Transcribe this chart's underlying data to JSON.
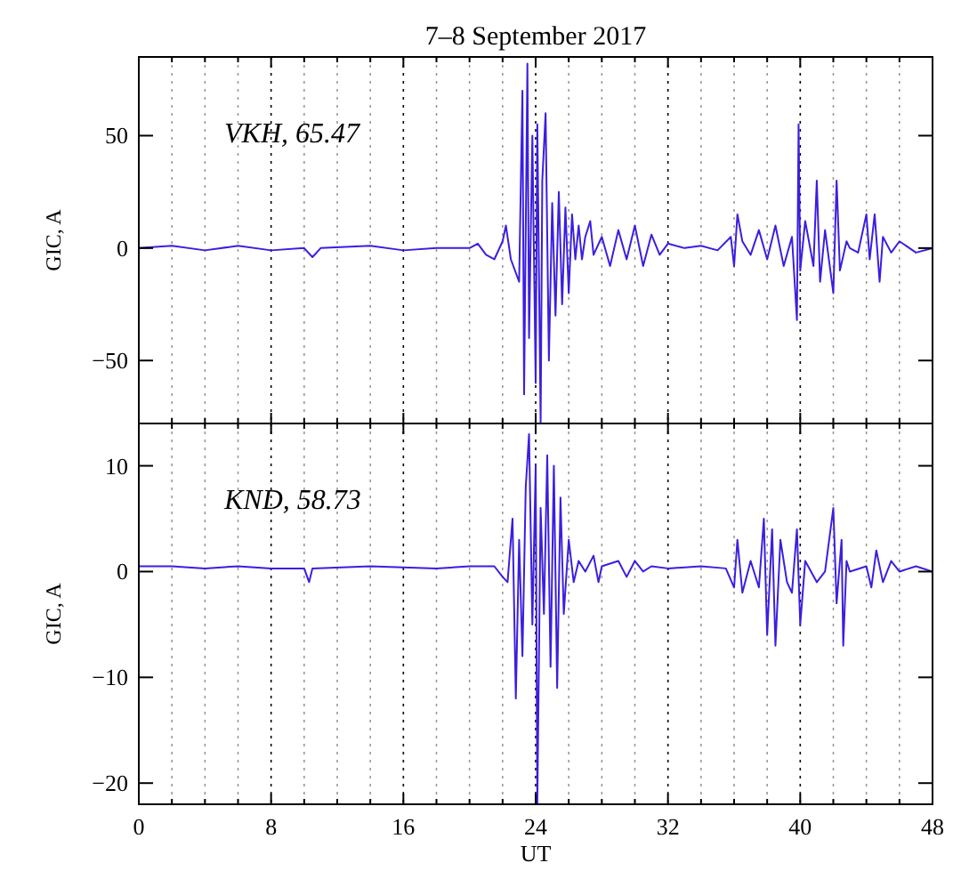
{
  "chart_data": [
    {
      "type": "line",
      "title": "7–8 September 2017",
      "ylabel": "GIC, A",
      "annotations": [
        "VKH, 65.47"
      ],
      "grid": "x",
      "tick_labels": "y",
      "xlim": [
        0,
        48
      ],
      "xticks": [
        0,
        {
          "value": 2,
          "label": null
        },
        {
          "value": 4,
          "label": null
        },
        {
          "value": 6,
          "label": null
        },
        8,
        {
          "value": 10,
          "label": null
        },
        {
          "value": 12,
          "label": null
        },
        {
          "value": 14,
          "label": null
        },
        16,
        {
          "value": 18,
          "label": null
        },
        {
          "value": 20,
          "label": null
        },
        {
          "value": 22,
          "label": null
        },
        24,
        {
          "value": 26,
          "label": null
        },
        {
          "value": 28,
          "label": null
        },
        {
          "value": 30,
          "label": null
        },
        32,
        {
          "value": 34,
          "label": null
        },
        {
          "value": 36,
          "label": null
        },
        {
          "value": 38,
          "label": null
        },
        40,
        {
          "value": 42,
          "label": null
        },
        {
          "value": 44,
          "label": null
        },
        {
          "value": 46,
          "label": null
        },
        48
      ],
      "ylim": [
        -78,
        85
      ],
      "yticks": [
        -50,
        0,
        50
      ],
      "series": [
        {
          "color": "#3a1fe0",
          "x": [
            0,
            2,
            4,
            6,
            8,
            10,
            10.5,
            11,
            14,
            16,
            18,
            20,
            20.5,
            21,
            21.5,
            22,
            22.2,
            22.5,
            23,
            23.2,
            23.3,
            23.5,
            23.6,
            23.8,
            24,
            24.1,
            24.3,
            24.4,
            24.6,
            24.8,
            25,
            25.2,
            25.4,
            25.6,
            25.8,
            26,
            26.2,
            26.4,
            26.6,
            26.8,
            27,
            27.3,
            27.5,
            28,
            28.5,
            29,
            29.5,
            30,
            30.5,
            31,
            31.5,
            32,
            33,
            34,
            35,
            35.8,
            36,
            36.2,
            36.5,
            37,
            37.5,
            38,
            38.5,
            39,
            39.5,
            39.8,
            39.9,
            40,
            40.3,
            40.8,
            41,
            41.2,
            41.5,
            42,
            42.2,
            42.4,
            42.8,
            43,
            43.5,
            44,
            44.2,
            44.5,
            44.8,
            45,
            45.5,
            46,
            47,
            48
          ],
          "values": [
            0,
            1,
            -1,
            1,
            -1,
            0,
            -4,
            0,
            1,
            -1,
            0,
            0,
            2,
            -3,
            -5,
            3,
            10,
            -5,
            -15,
            70,
            -65,
            82,
            -40,
            50,
            -60,
            55,
            -78,
            30,
            60,
            -50,
            20,
            -30,
            25,
            -25,
            18,
            -20,
            15,
            -5,
            10,
            -5,
            5,
            12,
            -3,
            5,
            -8,
            8,
            -5,
            10,
            -8,
            6,
            -3,
            2,
            0,
            1,
            -1,
            5,
            -8,
            15,
            3,
            -3,
            8,
            -5,
            10,
            -8,
            5,
            -32,
            55,
            -10,
            12,
            -8,
            30,
            -15,
            8,
            -20,
            30,
            -10,
            3,
            0,
            -2,
            15,
            -5,
            15,
            -15,
            5,
            -2,
            3,
            -2,
            0
          ]
        }
      ]
    },
    {
      "type": "line",
      "xlabel": "UT",
      "ylabel": "GIC, A",
      "annotations": [
        "KND, 58.73"
      ],
      "grid": "x",
      "xlim": [
        0,
        48
      ],
      "xticks": [
        0,
        {
          "value": 2,
          "label": null
        },
        {
          "value": 4,
          "label": null
        },
        {
          "value": 6,
          "label": null
        },
        8,
        {
          "value": 10,
          "label": null
        },
        {
          "value": 12,
          "label": null
        },
        {
          "value": 14,
          "label": null
        },
        16,
        {
          "value": 18,
          "label": null
        },
        {
          "value": 20,
          "label": null
        },
        {
          "value": 22,
          "label": null
        },
        24,
        {
          "value": 26,
          "label": null
        },
        {
          "value": 28,
          "label": null
        },
        {
          "value": 30,
          "label": null
        },
        32,
        {
          "value": 34,
          "label": null
        },
        {
          "value": 36,
          "label": null
        },
        {
          "value": 38,
          "label": null
        },
        40,
        {
          "value": 42,
          "label": null
        },
        {
          "value": 44,
          "label": null
        },
        {
          "value": 46,
          "label": null
        },
        48
      ],
      "ylim": [
        -22,
        14
      ],
      "yticks": [
        -20,
        -10,
        0,
        10
      ],
      "series": [
        {
          "color": "#3a1fe0",
          "x": [
            0,
            2,
            4,
            6,
            8,
            10,
            10.3,
            10.5,
            14,
            18,
            20,
            21.5,
            22,
            22.3,
            22.6,
            22.8,
            23,
            23.2,
            23.4,
            23.6,
            23.8,
            24,
            24.1,
            24.3,
            24.5,
            24.7,
            24.9,
            25.1,
            25.3,
            25.5,
            25.7,
            26,
            26.3,
            26.6,
            27,
            27.5,
            27.8,
            28,
            29,
            29.5,
            30,
            30.5,
            31,
            32,
            34,
            35.5,
            36,
            36.2,
            36.5,
            37,
            37.5,
            37.8,
            38,
            38.3,
            38.5,
            38.8,
            39.2,
            39.5,
            39.8,
            40,
            40.3,
            41,
            41.5,
            42,
            42.2,
            42.5,
            42.6,
            42.8,
            43,
            44,
            44.3,
            44.6,
            45,
            45.5,
            46,
            47,
            48
          ],
          "values": [
            0.5,
            0.5,
            0.3,
            0.5,
            0.3,
            0.3,
            -1,
            0.3,
            0.5,
            0.3,
            0.5,
            0.5,
            -0.5,
            -1,
            5,
            -12,
            3,
            -8,
            8,
            13,
            -5,
            10,
            -22,
            6,
            -4,
            11,
            -9,
            10,
            -11,
            7,
            -4,
            3,
            -1,
            1,
            0,
            1.5,
            -1,
            0.5,
            1,
            -0.5,
            1,
            0,
            0.5,
            0.3,
            0.5,
            0.3,
            -1.5,
            3,
            -2,
            1,
            -1.5,
            5,
            -6,
            4,
            -7,
            3,
            -1,
            -2,
            4,
            -5,
            1,
            -1,
            0,
            6,
            -3,
            3,
            -7,
            1,
            0,
            0.5,
            -1.5,
            2,
            -1,
            1,
            0,
            0.5,
            0
          ]
        }
      ]
    }
  ]
}
